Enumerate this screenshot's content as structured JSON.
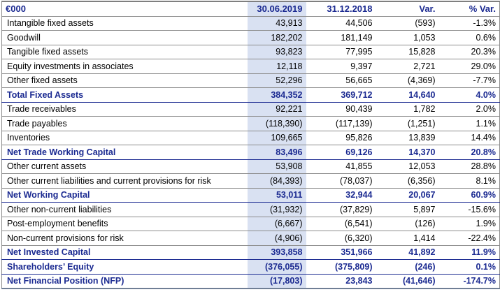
{
  "table": {
    "unit_header": "€000",
    "columns": [
      "30.06.2019",
      "31.12.2018",
      "Var.",
      "% Var."
    ],
    "rows": [
      {
        "label": "Intangible fixed assets",
        "v_2019": "43,913",
        "v_2018": "44,506",
        "var": "(593)",
        "pct_var": "-1.3%",
        "emphasis": false
      },
      {
        "label": "Goodwill",
        "v_2019": "182,202",
        "v_2018": "181,149",
        "var": "1,053",
        "pct_var": "0.6%",
        "emphasis": false
      },
      {
        "label": "Tangible fixed assets",
        "v_2019": "93,823",
        "v_2018": "77,995",
        "var": "15,828",
        "pct_var": "20.3%",
        "emphasis": false
      },
      {
        "label": "Equity investments in associates",
        "v_2019": "12,118",
        "v_2018": "9,397",
        "var": "2,721",
        "pct_var": "29.0%",
        "emphasis": false
      },
      {
        "label": "Other fixed assets",
        "v_2019": "52,296",
        "v_2018": "56,665",
        "var": "(4,369)",
        "pct_var": "-7.7%",
        "emphasis": false
      },
      {
        "label": "Total Fixed Assets",
        "v_2019": "384,352",
        "v_2018": "369,712",
        "var": "14,640",
        "pct_var": "4.0%",
        "emphasis": true
      },
      {
        "label": "Trade receivables",
        "v_2019": "92,221",
        "v_2018": "90,439",
        "var": "1,782",
        "pct_var": "2.0%",
        "emphasis": false
      },
      {
        "label": "Trade payables",
        "v_2019": "(118,390)",
        "v_2018": "(117,139)",
        "var": "(1,251)",
        "pct_var": "1.1%",
        "emphasis": false
      },
      {
        "label": "Inventories",
        "v_2019": "109,665",
        "v_2018": "95,826",
        "var": "13,839",
        "pct_var": "14.4%",
        "emphasis": false
      },
      {
        "label": "Net Trade Working Capital",
        "v_2019": "83,496",
        "v_2018": "69,126",
        "var": "14,370",
        "pct_var": "20.8%",
        "emphasis": true
      },
      {
        "label": "Other current assets",
        "v_2019": "53,908",
        "v_2018": "41,855",
        "var": "12,053",
        "pct_var": "28.8%",
        "emphasis": false
      },
      {
        "label": "Other current liabilities and current provisions for risk",
        "v_2019": "(84,393)",
        "v_2018": "(78,037)",
        "var": "(6,356)",
        "pct_var": "8.1%",
        "emphasis": false
      },
      {
        "label": "Net Working Capital",
        "v_2019": "53,011",
        "v_2018": "32,944",
        "var": "20,067",
        "pct_var": "60.9%",
        "emphasis": true
      },
      {
        "label": "Other non-current liabilities",
        "v_2019": "(31,932)",
        "v_2018": "(37,829)",
        "var": "5,897",
        "pct_var": "-15.6%",
        "emphasis": false
      },
      {
        "label": "Post-employment benefits",
        "v_2019": "(6,667)",
        "v_2018": "(6,541)",
        "var": "(126)",
        "pct_var": "1.9%",
        "emphasis": false
      },
      {
        "label": "Non-current provisions for risk",
        "v_2019": "(4,906)",
        "v_2018": "(6,320)",
        "var": "1,414",
        "pct_var": "-22.4%",
        "emphasis": false
      },
      {
        "label": "Net Invested Capital",
        "v_2019": "393,858",
        "v_2018": "351,966",
        "var": "41,892",
        "pct_var": "11.9%",
        "emphasis": true
      },
      {
        "label": "Shareholders’ Equity",
        "v_2019": "(376,055)",
        "v_2018": "(375,809)",
        "var": "(246)",
        "pct_var": "0.1%",
        "emphasis": true
      },
      {
        "label": "Net Financial Position (NFP)",
        "v_2019": "(17,803)",
        "v_2018": "23,843",
        "var": "(41,646)",
        "pct_var": "-174.7%",
        "emphasis": true
      }
    ]
  },
  "colors": {
    "accent_text": "#1b2a91",
    "highlight_column_bg": "#d9e1f2",
    "grid_line": "#8c8c8c"
  }
}
